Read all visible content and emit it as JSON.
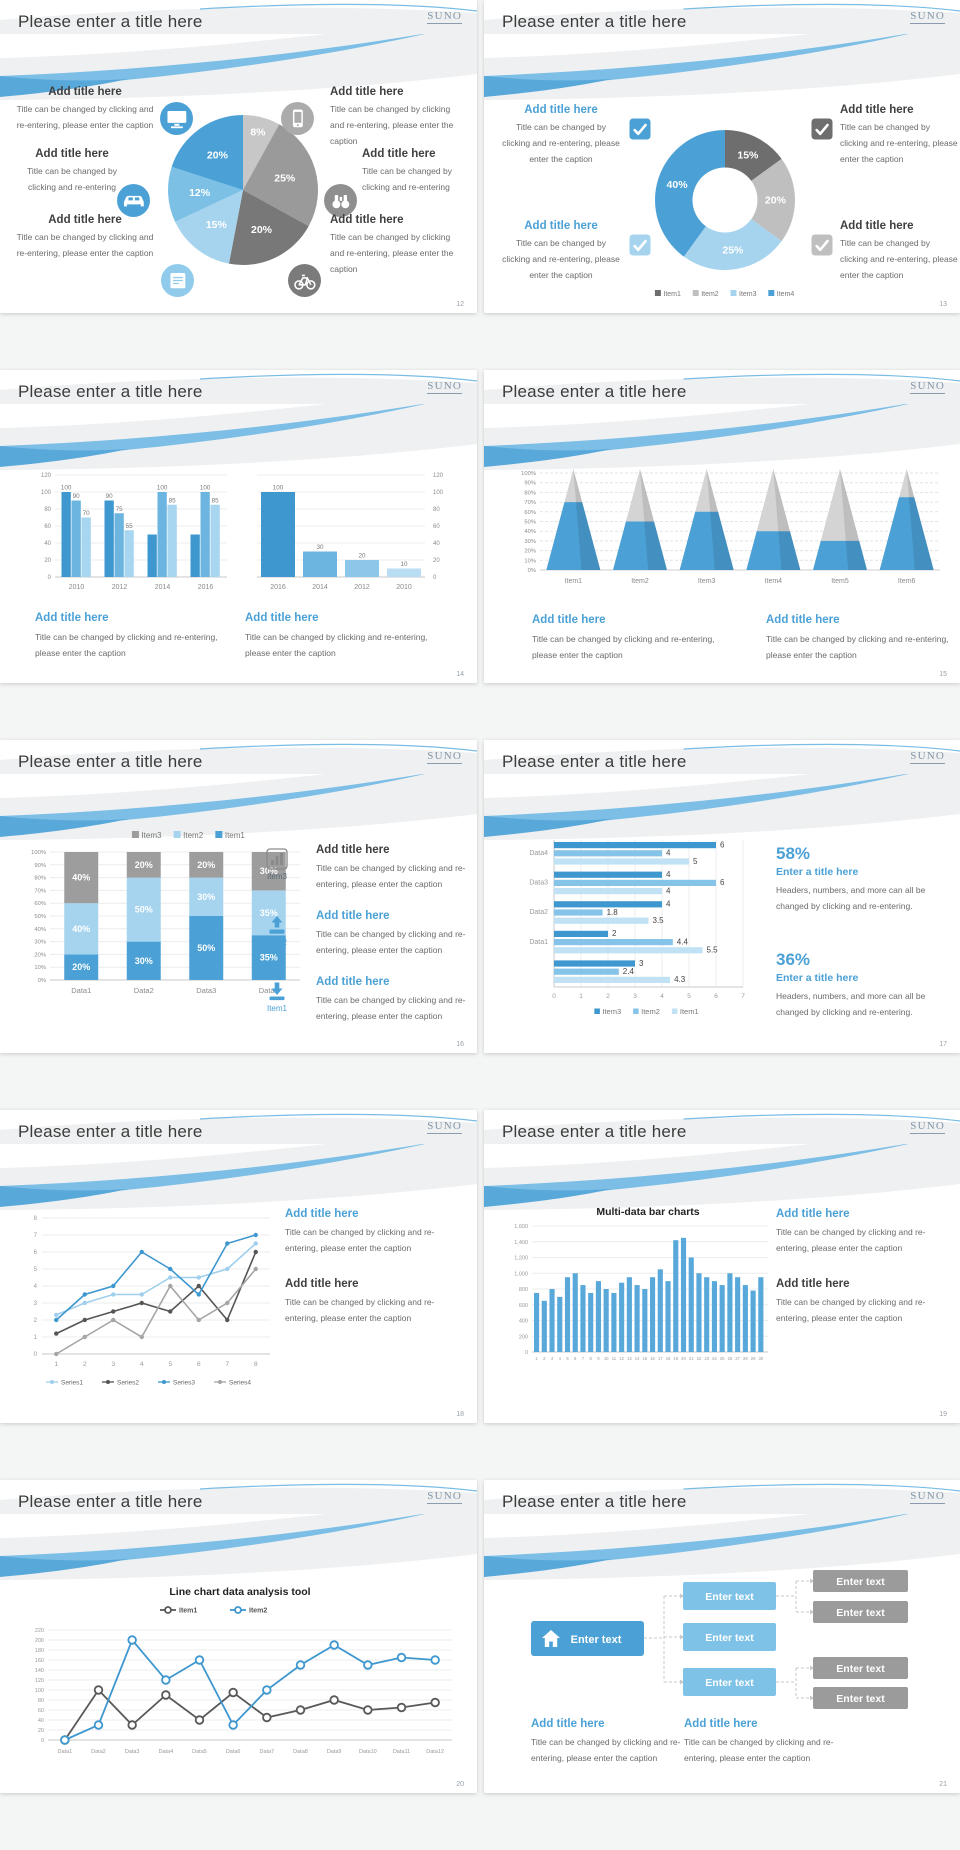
{
  "page_bg": "#f4f5f5",
  "accent": "#4ba1d6",
  "common": {
    "slide_title": "Please enter a title here",
    "logo": "SUNO",
    "add_title": "Add title here",
    "caption_full": "Title can be changed by clicking and re-entering, please enter the caption",
    "caption_short": "Title can be changed by clicking and re-entering"
  },
  "slides": [
    {
      "page": "12",
      "type": "pie_callouts",
      "callouts": [
        {
          "pos": "L1",
          "title": "Add title here",
          "caption": "Title can be changed by clicking and re-entering, please enter the caption",
          "icon": "monitor-icon",
          "icon_color": "#4ba1d6"
        },
        {
          "pos": "L2",
          "title": "Add title here",
          "caption": "Title can be changed by clicking and re-entering",
          "icon": "car-icon",
          "icon_color": "#4ba1d6"
        },
        {
          "pos": "L3",
          "title": "Add title here",
          "caption": "Title can be changed by clicking and re-entering, please enter the caption",
          "icon": "book-icon",
          "icon_color": "#90cbec"
        },
        {
          "pos": "R1",
          "title": "Add title here",
          "caption": "Title can be changed by clicking and re-entering, please enter the caption",
          "icon": "smartphone-icon",
          "icon_color": "#ababab"
        },
        {
          "pos": "R2",
          "title": "Add title here",
          "caption": "Title can be changed by clicking and re-entering",
          "icon": "binoculars-icon",
          "icon_color": "#8f8f8f"
        },
        {
          "pos": "R3",
          "title": "Add title here",
          "caption": "Title can be changed by clicking and re-entering, please enter the caption",
          "icon": "bicycle-icon",
          "icon_color": "#7b7b7b"
        }
      ],
      "chart_data": {
        "type": "pie",
        "slices": [
          {
            "label": "8%",
            "value": 8,
            "color": "#c7c7c7"
          },
          {
            "label": "25%",
            "value": 25,
            "color": "#9a9a9a"
          },
          {
            "label": "20%",
            "value": 20,
            "color": "#787878"
          },
          {
            "label": "15%",
            "value": 15,
            "color": "#a6d4ef"
          },
          {
            "label": "12%",
            "value": 12,
            "color": "#7cc0e5"
          },
          {
            "label": "20%",
            "value": 20,
            "color": "#4ba1d6"
          }
        ]
      }
    },
    {
      "page": "13",
      "type": "donut_callouts",
      "callouts": [
        {
          "side": "left",
          "title": "Add title here",
          "title_color": "blue",
          "caption": "Title can be changed by clicking and re-entering, please enter the caption",
          "check_color": "#4ba1d6",
          "icon": "checkbox-icon"
        },
        {
          "side": "left",
          "title": "Add title here",
          "title_color": "blue",
          "caption": "Title can be changed by clicking and re-entering, please enter the caption",
          "check_color": "#a6d4ef",
          "icon": "checkbox-icon"
        },
        {
          "side": "right",
          "title": "Add title here",
          "title_color": "dark",
          "caption": "Title can be changed by clicking and re-entering, please enter the caption",
          "check_color": "#6e6e6e",
          "icon": "checkbox-icon"
        },
        {
          "side": "right",
          "title": "Add title here",
          "title_color": "dark",
          "caption": "Title can be changed by clicking and re-entering, please enter the caption",
          "check_color": "#bfbfbf",
          "icon": "checkbox-icon"
        }
      ],
      "chart_data": {
        "type": "pie",
        "donut": true,
        "legend_position": "bottom",
        "slices": [
          {
            "label": "15%",
            "value": 15,
            "color": "#6e6e6e",
            "legend": "Item1"
          },
          {
            "label": "20%",
            "value": 20,
            "color": "#bfbfbf",
            "legend": "Item2"
          },
          {
            "label": "25%",
            "value": 25,
            "color": "#a6d4ef",
            "legend": "Item3"
          },
          {
            "label": "40%",
            "value": 40,
            "color": "#4ba1d6",
            "legend": "Item4"
          }
        ]
      }
    },
    {
      "page": "14",
      "type": "two_bars",
      "sections": [
        {
          "title": "Add title here",
          "caption": "Title can be changed by clicking and re-entering, please enter the caption"
        },
        {
          "title": "Add title here",
          "caption": "Title can be changed by clicking and re-entering, please enter the caption"
        }
      ],
      "chart_data": [
        {
          "type": "bar",
          "categories": [
            "2010",
            "2012",
            "2014",
            "2016"
          ],
          "ylim": [
            0,
            120
          ],
          "ytick": 20,
          "axis_side": "left",
          "series": [
            {
              "color": "#3e97cf",
              "values": [
                100,
                90,
                50,
                50
              ],
              "labels": [
                "100",
                "90",
                "",
                ""
              ]
            },
            {
              "color": "#6cb5e1",
              "values": [
                90,
                75,
                100,
                100
              ],
              "labels": [
                "90",
                "75",
                "100",
                "100"
              ]
            },
            {
              "color": "#a8d5ef",
              "values": [
                70,
                55,
                85,
                85
              ],
              "labels": [
                "70",
                "55",
                "85",
                "85"
              ]
            }
          ]
        },
        {
          "type": "bar",
          "categories": [
            "2016",
            "2014",
            "2012",
            "2010"
          ],
          "ylim": [
            0,
            120
          ],
          "ytick": 20,
          "axis_side": "right",
          "values": [
            100,
            30,
            20,
            10
          ],
          "labels": [
            "100",
            "30",
            "20",
            "10"
          ],
          "colors": [
            "#3e97cf",
            "#6cb5e1",
            "#8cc6e8",
            "#b9ddf3"
          ]
        }
      ]
    },
    {
      "page": "15",
      "type": "cones",
      "sections": [
        {
          "title": "Add title here",
          "caption": "Title can be changed by clicking and re-entering, please enter the caption"
        },
        {
          "title": "Add title here",
          "caption": "Title can be changed by clicking and re-entering, please enter the caption"
        }
      ],
      "chart_data": {
        "type": "bar",
        "subtype": "cone",
        "categories": [
          "Item1",
          "Item2",
          "Item3",
          "Item4",
          "Item5",
          "Item6"
        ],
        "values": [
          70,
          50,
          60,
          40,
          30,
          75
        ],
        "ylim": [
          0,
          100
        ],
        "ytick": 10,
        "fill": "#4ba1d6",
        "rest_color": "#d4d4d4"
      }
    },
    {
      "page": "16",
      "type": "stacked",
      "list": [
        {
          "item": "Item3",
          "icon": "bar-chart-icon",
          "icon_color": "#8a8a8a",
          "title": "Add title here",
          "title_color": "dark",
          "caption": "Title can be changed by clicking and re-entering, please enter the caption"
        },
        {
          "item": "Item2",
          "icon": "upload-icon",
          "icon_color": "#4ba1d6",
          "title": "Add title here",
          "title_color": "blue",
          "caption": "Title can be changed by clicking and re-entering, please enter the caption"
        },
        {
          "item": "Item1",
          "icon": "download-icon",
          "icon_color": "#4ba1d6",
          "title": "Add title here",
          "title_color": "blue",
          "caption": "Title can be changed by clicking and re-entering, please enter the caption"
        }
      ],
      "chart_data": {
        "type": "bar",
        "stacked": true,
        "categories": [
          "Data1",
          "Data2",
          "Data3",
          "Data4"
        ],
        "ylim": [
          0,
          100
        ],
        "ytick": 10,
        "series": [
          {
            "name": "Item1",
            "color": "#4ba1d6",
            "values": [
              20,
              30,
              50,
              35
            ]
          },
          {
            "name": "Item2",
            "color": "#a6d4ef",
            "values": [
              40,
              50,
              30,
              35
            ]
          },
          {
            "name": "Item3",
            "color": "#9d9d9d",
            "values": [
              40,
              20,
              20,
              30
            ]
          }
        ],
        "legend_order": [
          "Item3",
          "Item2",
          "Item1"
        ]
      }
    },
    {
      "page": "17",
      "type": "hbars",
      "stats": [
        {
          "value": "58%",
          "title": "Enter a title here",
          "caption": "Headers, numbers, and more can all be changed by clicking and re-entering."
        },
        {
          "value": "36%",
          "title": "Enter a title here",
          "caption": "Headers, numbers, and more can all be changed by clicking and re-entering."
        }
      ],
      "chart_data": {
        "type": "bar",
        "horizontal": true,
        "xlim": [
          0,
          7
        ],
        "xtick": 1,
        "groups": [
          {
            "label": "Data4",
            "values": [
              6,
              4,
              5
            ]
          },
          {
            "label": "Data3",
            "values": [
              4,
              6,
              4
            ]
          },
          {
            "label": "Data2",
            "values": [
              4,
              1.8,
              3.5
            ]
          },
          {
            "label": "Data1",
            "values": [
              2,
              4.4,
              5.5
            ]
          },
          {
            "label": "",
            "values": [
              3,
              2.4,
              4.3
            ]
          }
        ],
        "series": [
          {
            "name": "Item3",
            "color": "#3e97cf"
          },
          {
            "name": "Item2",
            "color": "#85c4e8"
          },
          {
            "name": "Item1",
            "color": "#c0e2f4"
          }
        ]
      }
    },
    {
      "page": "18",
      "type": "lines4",
      "sections": [
        {
          "title": "Add title here",
          "title_color": "blue",
          "caption": "Title can be changed by clicking and re-entering, please enter the caption"
        },
        {
          "title": "Add title here",
          "title_color": "dark",
          "caption": "Title can be changed by clicking and re-entering, please enter the caption"
        }
      ],
      "chart_data": {
        "type": "line",
        "x": [
          "1",
          "2",
          "3",
          "4",
          "5",
          "6",
          "7",
          "8"
        ],
        "ylim": [
          0,
          8
        ],
        "ytick": 1,
        "legend_position": "bottom",
        "series": [
          {
            "name": "Series1",
            "color": "#9fcfec",
            "values": [
              2.3,
              3,
              3.5,
              3.5,
              4.5,
              4.5,
              5,
              6.5
            ]
          },
          {
            "name": "Series2",
            "color": "#555555",
            "values": [
              1.2,
              2,
              2.5,
              3,
              2.5,
              4,
              2,
              6
            ]
          },
          {
            "name": "Series3",
            "color": "#3e97cf",
            "values": [
              2,
              3.5,
              4,
              6,
              5,
              3.5,
              6.5,
              7
            ]
          },
          {
            "name": "Series4",
            "color": "#a5a5a5",
            "values": [
              0,
              1,
              2,
              1,
              4,
              2,
              3,
              5
            ]
          }
        ]
      }
    },
    {
      "page": "19",
      "type": "bars30",
      "sections": [
        {
          "title": "Add title here",
          "title_color": "blue",
          "caption": "Title can be changed by clicking and re-entering, please enter the caption"
        },
        {
          "title": "Add title here",
          "title_color": "dark",
          "caption": "Title can be changed by clicking and re-entering, please enter the caption"
        }
      ],
      "chart_data": {
        "type": "bar",
        "title": "Multi-data bar charts",
        "ylim": [
          0,
          1600
        ],
        "ytick": 200,
        "color": "#58a9da",
        "categories": [
          "1",
          "2",
          "3",
          "4",
          "5",
          "6",
          "7",
          "8",
          "9",
          "10",
          "11",
          "12",
          "13",
          "14",
          "15",
          "16",
          "17",
          "18",
          "19",
          "20",
          "21",
          "22",
          "23",
          "24",
          "25",
          "26",
          "27",
          "28",
          "29",
          "30"
        ],
        "values": [
          750,
          650,
          800,
          700,
          950,
          1000,
          850,
          750,
          900,
          800,
          750,
          880,
          950,
          850,
          800,
          950,
          1050,
          900,
          1420,
          1450,
          1200,
          1000,
          950,
          900,
          850,
          1000,
          950,
          850,
          780,
          950
        ]
      }
    },
    {
      "page": "20",
      "type": "lines2",
      "chart_data": {
        "type": "line",
        "title": "Line chart data analysis tool",
        "legend_position": "top",
        "categories": [
          "Data1",
          "Data2",
          "Data3",
          "Data4",
          "Data5",
          "Data6",
          "Data7",
          "Data8",
          "Data9",
          "Data10",
          "Data11",
          "Data12"
        ],
        "ylim": [
          0,
          220
        ],
        "ytick": 20,
        "series": [
          {
            "name": "Item1",
            "color": "#595959",
            "values": [
              0,
              100,
              30,
              90,
              40,
              95,
              45,
              60,
              80,
              60,
              65,
              75
            ]
          },
          {
            "name": "Item2",
            "color": "#3e97cf",
            "values": [
              0,
              30,
              200,
              120,
              160,
              30,
              100,
              150,
              190,
              150,
              165,
              160
            ]
          }
        ]
      }
    },
    {
      "page": "21",
      "type": "diagram",
      "sections": [
        {
          "title": "Add title here",
          "caption": "Title can be changed by clicking and re-entering, please enter the caption"
        },
        {
          "title": "Add title here",
          "caption": "Title can be changed by clicking and re-entering, please enter the caption"
        }
      ],
      "diagram": {
        "root": {
          "label": "Enter text",
          "icon": "home-icon",
          "color": "#4ba1d6"
        },
        "level2_color": "#7ec2e8",
        "level2": [
          {
            "label": "Enter text"
          },
          {
            "label": "Enter text"
          },
          {
            "label": "Enter text"
          }
        ],
        "level3_color": "#9b9b9b",
        "level3": [
          {
            "label": "Enter text"
          },
          {
            "label": "Enter text"
          },
          {
            "label": "Enter text"
          },
          {
            "label": "Enter text"
          }
        ]
      }
    }
  ]
}
